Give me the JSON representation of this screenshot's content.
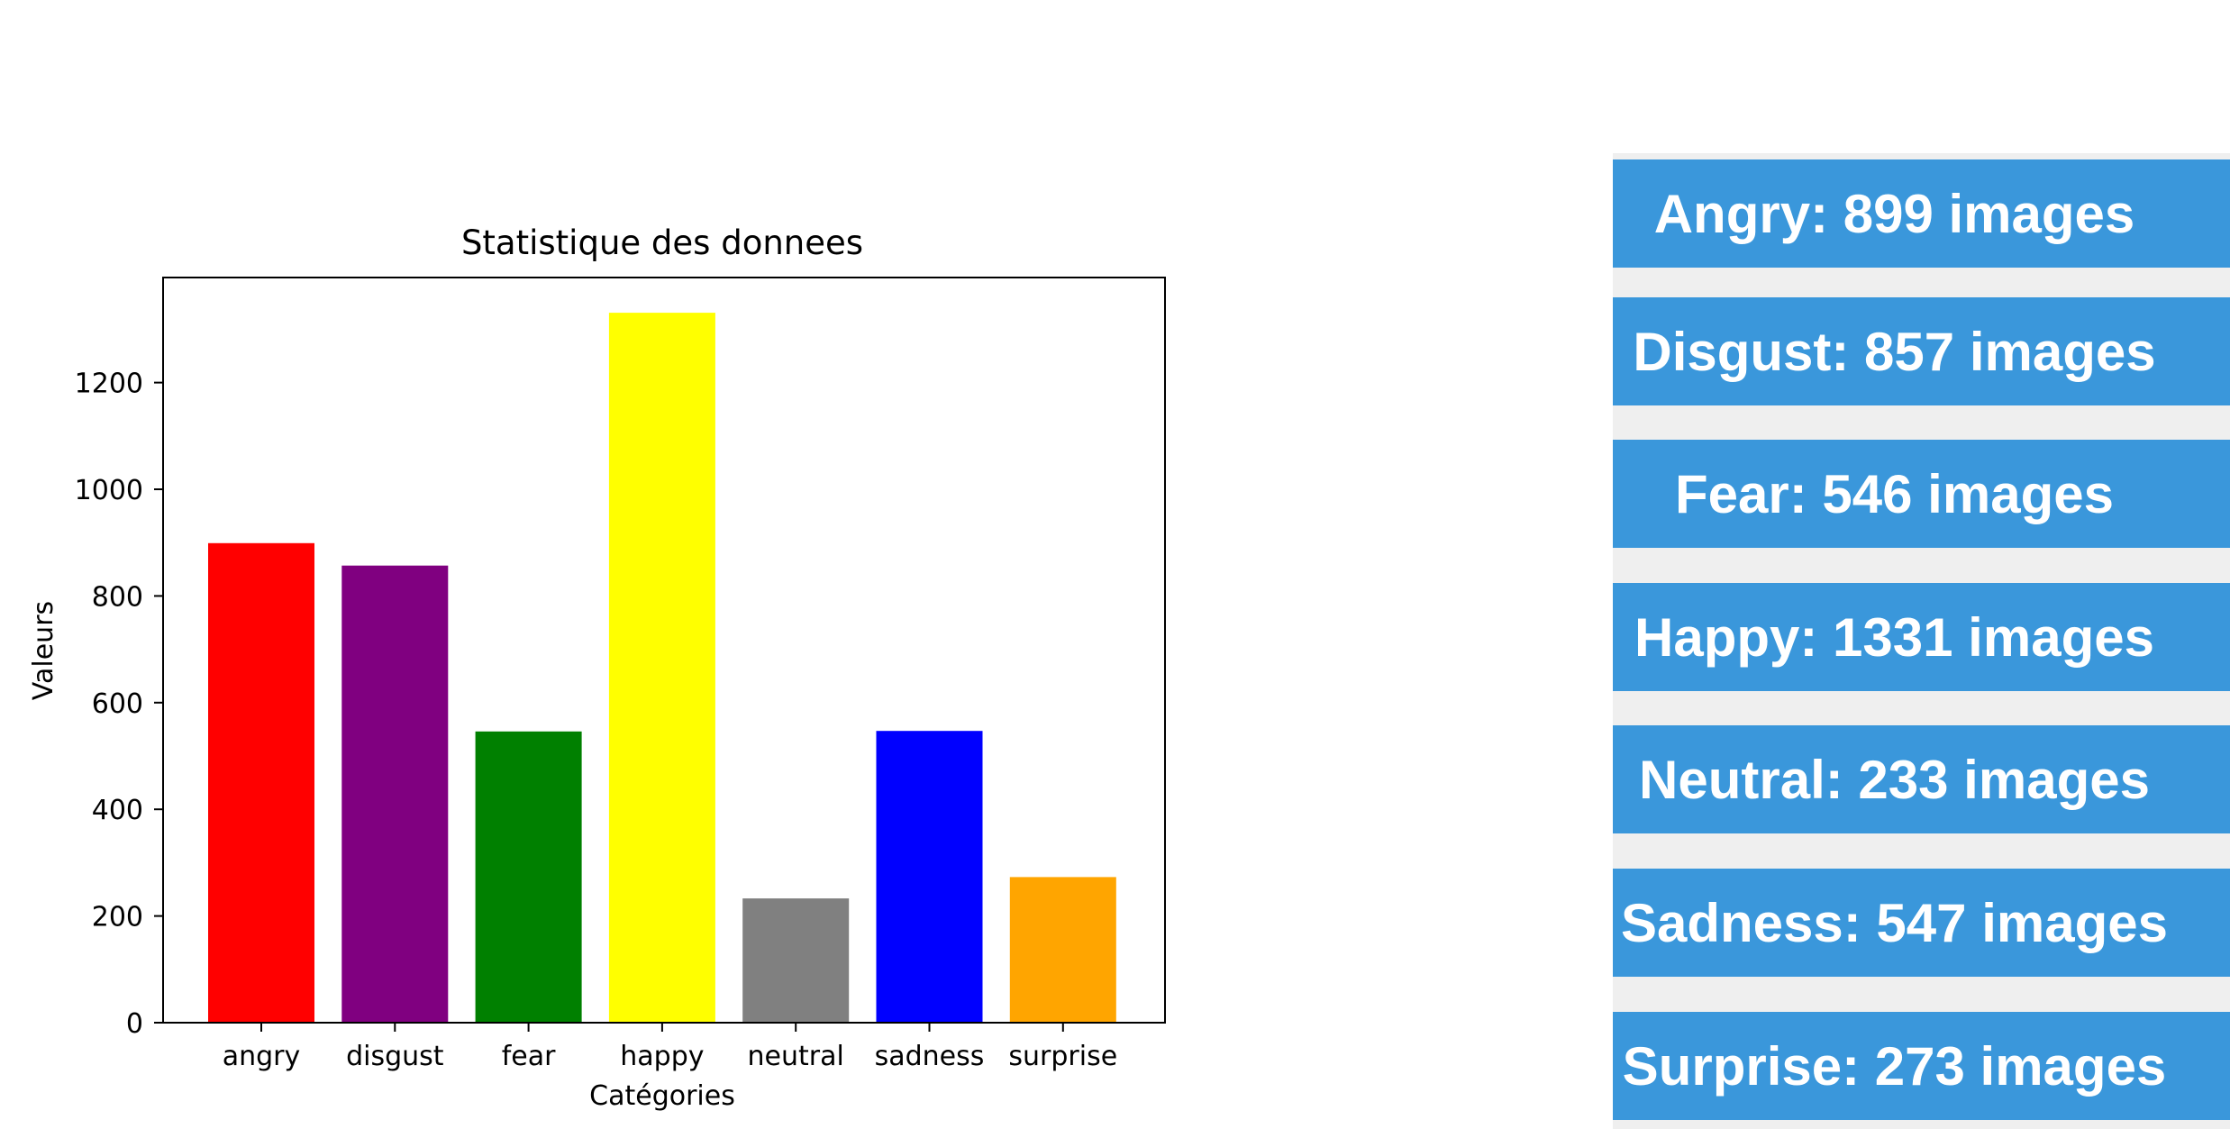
{
  "chart_data": {
    "type": "bar",
    "title": "Statistique des donnees",
    "xlabel": "Catégories",
    "ylabel": "Valeurs",
    "categories": [
      "angry",
      "disgust",
      "fear",
      "happy",
      "neutral",
      "sadness",
      "surprise"
    ],
    "values": [
      899,
      857,
      546,
      1331,
      233,
      547,
      273
    ],
    "colors": [
      "#ff0000",
      "#800080",
      "#008000",
      "#ffff00",
      "#808080",
      "#0000ff",
      "#ffa500"
    ],
    "ylim": [
      0,
      1397
    ],
    "yticks": [
      0,
      200,
      400,
      600,
      800,
      1000,
      1200
    ],
    "grid": false
  },
  "stats": {
    "items": [
      {
        "label": "Angry: 899 images"
      },
      {
        "label": "Disgust: 857 images"
      },
      {
        "label": "Fear: 546 images"
      },
      {
        "label": "Happy: 1331 images"
      },
      {
        "label": "Neutral: 233 images"
      },
      {
        "label": "Sadness: 547 images"
      },
      {
        "label": "Surprise: 273 images"
      }
    ],
    "colors": {
      "item_bg": "#3a97db",
      "item_text": "#ffffff",
      "panel_bg": "#efefef"
    }
  }
}
